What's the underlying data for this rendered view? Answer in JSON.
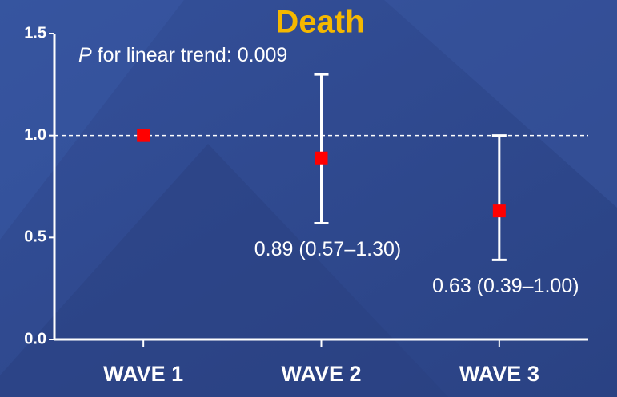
{
  "chart_data": {
    "type": "errorbar",
    "title": "Death",
    "annotation": {
      "italic": "P",
      "text": " for linear trend: 0.009"
    },
    "categories": [
      "WAVE 1",
      "WAVE 2",
      "WAVE 3"
    ],
    "values": [
      1.0,
      0.89,
      0.63
    ],
    "lower": [
      null,
      0.57,
      0.39
    ],
    "upper": [
      null,
      1.3,
      1.0
    ],
    "value_labels": [
      null,
      "0.89 (0.57–1.30)",
      "0.63 (0.39–1.00)"
    ],
    "color": "#ff0000",
    "reference_line": 1.0,
    "ylim": [
      0,
      1.5
    ],
    "yticks": [
      {
        "value": 0,
        "label": "0.0"
      },
      0.5,
      {
        "value": 1,
        "label": "1.0"
      },
      1.5
    ]
  }
}
